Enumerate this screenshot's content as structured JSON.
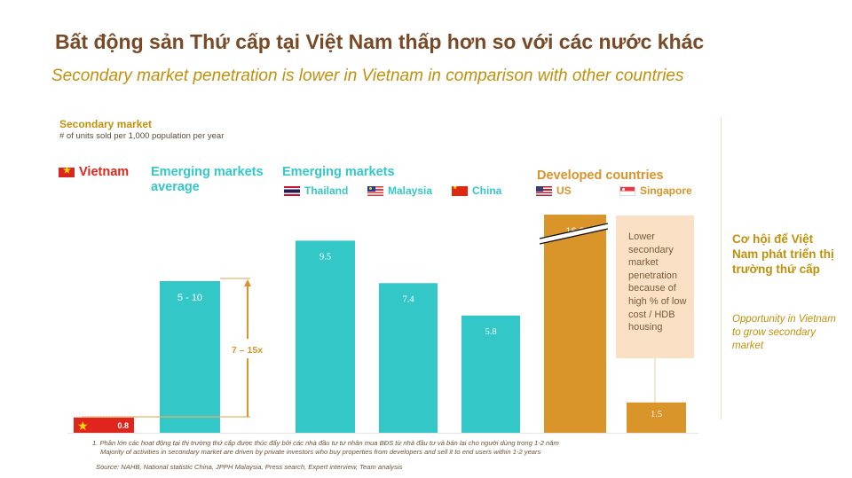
{
  "header": {
    "title": "Bất động sản Thứ cấp tại Việt Nam thấp hơn so với các nước khác",
    "subtitle": "Secondary market penetration is lower in Vietnam in comparison with other countries"
  },
  "metric": {
    "title": "Secondary market",
    "unit": "# of units sold per 1,000 population per year"
  },
  "groups": {
    "vietnam": "Vietnam",
    "emerging_avg": "Emerging markets average",
    "emerging": "Emerging markets",
    "developed": "Developed countries"
  },
  "countries": {
    "thailand": "Thailand",
    "malaysia": "Malaysia",
    "china": "China",
    "us": "US",
    "singapore": "Singapore"
  },
  "colors": {
    "vietnam": "#e0261c",
    "emerging": "#33c7c8",
    "developed": "#d9942a",
    "title": "#7a4a26",
    "accent": "#c1900a"
  },
  "annotations": {
    "multiplier": "7 – 15x",
    "singapore_note": "Lower secondary market penetration because of high % of low cost / HDB housing"
  },
  "chart_data": {
    "type": "bar",
    "title": "Secondary market",
    "ylabel": "# of units sold per 1,000 population per year",
    "xlabel": "",
    "categories": [
      "Vietnam",
      "Emerging markets average",
      "Thailand",
      "Malaysia",
      "China",
      "US",
      "Singapore"
    ],
    "values": [
      0.8,
      7.5,
      9.5,
      7.4,
      5.8,
      16.3,
      1.5
    ],
    "labels": [
      "0.8",
      "5 - 10",
      "9.5",
      "7.4",
      "5.8",
      "16.3",
      "1.5"
    ],
    "groups": [
      "Vietnam",
      "Emerging markets average",
      "Emerging markets",
      "Emerging markets",
      "Emerging markets",
      "Developed countries",
      "Developed countries"
    ],
    "axis_break": "US",
    "grid": false,
    "ylim": [
      0,
      12
    ]
  },
  "right_panel": {
    "title": "Cơ hội để Việt Nam phát triển thị trường thứ cấp",
    "subtitle": "Opportunity in Vietnam to grow secondary market"
  },
  "footer": {
    "note_vi": "1. Phần lớn các hoạt động tại thị trường thứ cấp được thúc đẩy bởi các nhà đầu tư tư nhân mua BĐS từ nhà đầu tư và bán lại cho người dùng trong 1-2 năm",
    "note_en": "Majority of activities in secondary market are driven by private investors who buy properties from developers and sell it to end users within 1-2 years",
    "source": "Source: NAHB, National statistic China, JPPH Malaysia, Press search, Expert interview, Team analysis"
  }
}
